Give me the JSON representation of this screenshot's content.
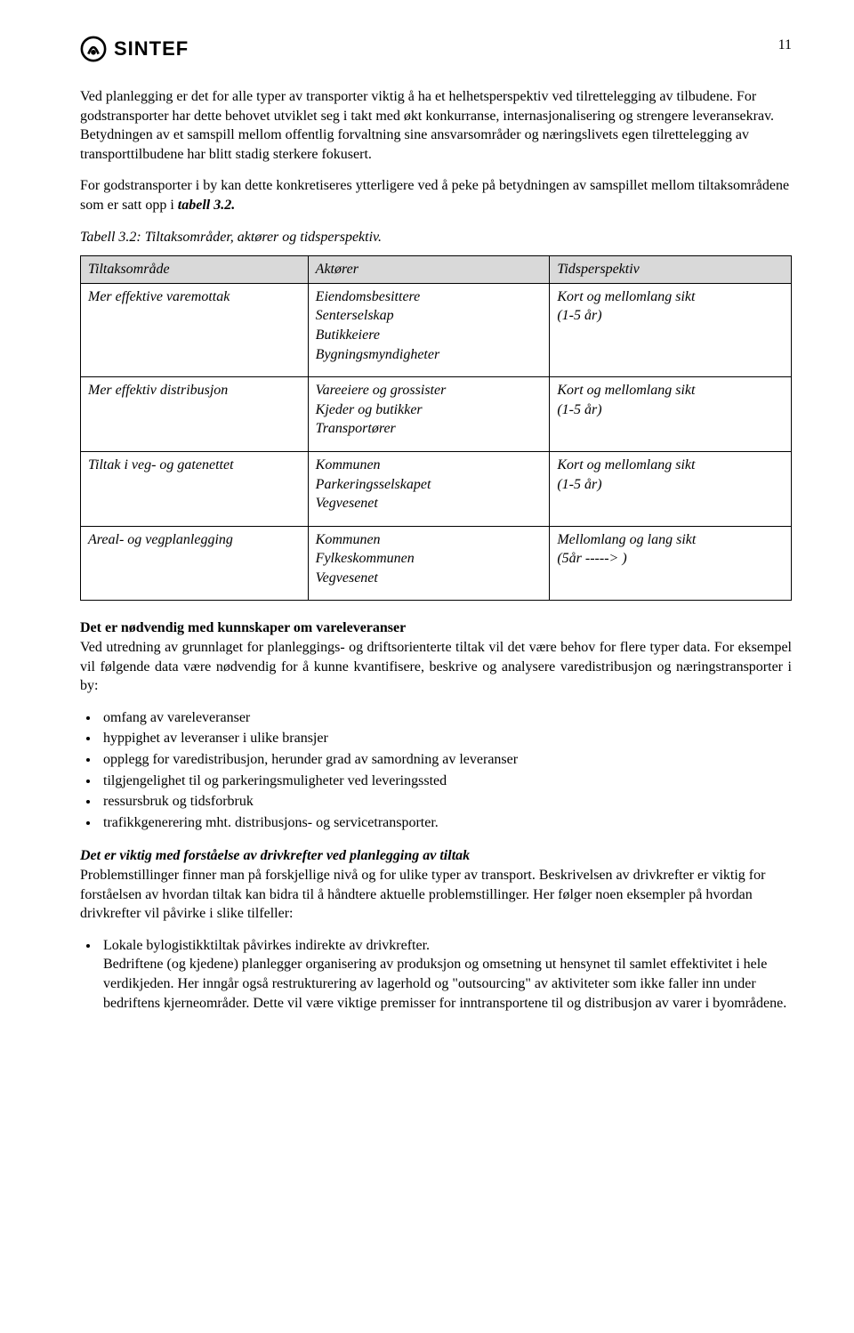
{
  "page": {
    "number": "11",
    "logo_text": "SINTEF"
  },
  "paragraphs": {
    "p1": "Ved planlegging er det for alle typer av transporter viktig å ha et helhetsperspektiv ved tilrettelegging av tilbudene. For godstransporter har dette behovet utviklet seg i takt med økt konkurranse, internasjonalisering og strengere leveransekrav. Betydningen av et samspill mellom offentlig forvaltning sine ansvarsområder og næringslivets egen tilrettelegging av transporttilbudene har blitt stadig sterkere fokusert.",
    "p2_a": "For godstransporter i by kan dette konkretiseres ytterligere ved å peke på betydningen av samspillet mellom tiltaksområdene som er satt opp i ",
    "p2_b": "tabell 3.2.",
    "caption": "Tabell 3.2: Tiltaksområder, aktører og tidsperspektiv.",
    "h1": "Det er nødvendig med kunnskaper om vareleveranser",
    "p3": "Ved utredning av grunnlaget for planleggings- og driftsorienterte tiltak vil det være behov for flere typer data. For eksempel vil følgende data være nødvendig for å kunne kvantifisere, beskrive og analysere varedistribusjon og næringstransporter i by:",
    "h2": "Det er viktig med forståelse av drivkrefter ved planlegging av tiltak",
    "p4": "Problemstillinger finner man på forskjellige nivå og for ulike typer av transport. Beskrivelsen av drivkrefter er viktig for forståelsen av hvordan tiltak kan bidra til å håndtere aktuelle problemstillinger. Her følger noen eksempler på hvordan drivkrefter vil påvirke i slike tilfeller:"
  },
  "table": {
    "headers": [
      "Tiltaksområde",
      "Aktører",
      "Tidsperspektiv"
    ],
    "col_widths": [
      "32%",
      "34%",
      "34%"
    ],
    "rows": [
      {
        "c0": "Mer effektive varemottak",
        "c1": "Eiendomsbesittere\nSenterselskap\nButikkeiere\nBygningsmyndigheter",
        "c2": "Kort og mellomlang sikt\n(1-5 år)"
      },
      {
        "c0": "Mer effektiv distribusjon",
        "c1": "Vareeiere og grossister\nKjeder og butikker\nTransportører",
        "c2": "Kort og mellomlang sikt\n(1-5 år)"
      },
      {
        "c0": "Tiltak i veg- og gatenettet",
        "c1": "Kommunen\nParkeringsselskapet\nVegvesenet",
        "c2": "Kort og mellomlang sikt\n(1-5 år)"
      },
      {
        "c0": "Areal- og vegplanlegging",
        "c1": "Kommunen\nFylkeskommunen\nVegvesenet",
        "c2": "Mellomlang og lang sikt\n(5år -----> )"
      }
    ]
  },
  "list1": [
    "omfang av vareleveranser",
    "hyppighet av leveranser i ulike bransjer",
    "opplegg for varedistribusjon, herunder grad av samordning av leveranser",
    "tilgjengelighet til og parkeringsmuligheter ved leveringssted",
    "ressursbruk og tidsforbruk",
    "trafikkgenerering mht. distribusjons- og servicetransporter."
  ],
  "list2": [
    {
      "lead": "Lokale bylogistikktiltak påvirkes indirekte av drivkrefter.",
      "rest": "Bedriftene (og kjedene) planlegger organisering av produksjon og omsetning ut hensynet til samlet effektivitet i hele verdikjeden. Her inngår også restrukturering av lagerhold og \"outsourcing\" av aktiviteter som ikke faller inn under bedriftens kjerneområder. Dette vil være viktige premisser for inntransportene til og distribusjon av varer i byområdene."
    }
  ]
}
